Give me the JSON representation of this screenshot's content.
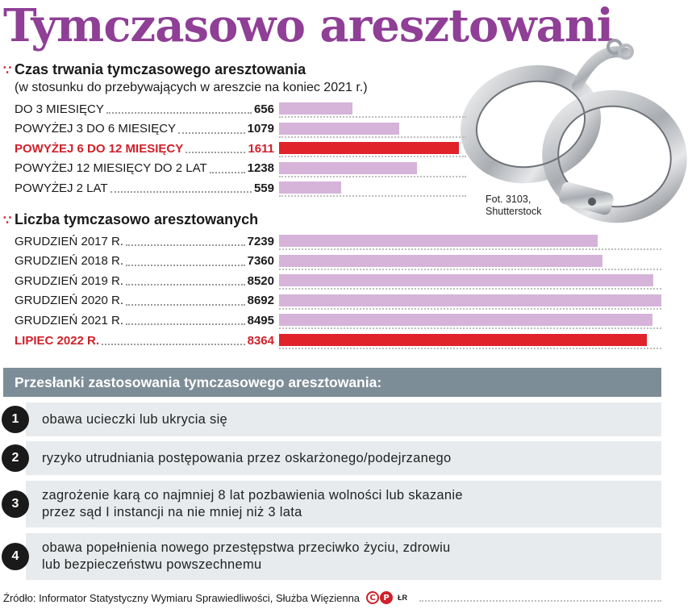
{
  "title": "Tymczasowo aresztowani",
  "photo_credit": [
    "Fot. 3103,",
    "Shutterstock"
  ],
  "chart_data": [
    {
      "type": "bar",
      "orientation": "horizontal",
      "title": "Czas trwania tymczasowego aresztowania",
      "subtitle": "(w stosunku do przebywających w areszcie na koniec 2021 r.)",
      "categories": [
        "DO 3 MIESIĘCY",
        "POWYŻEJ 3 DO 6 MIESIĘCY",
        "POWYŻEJ 6 DO 12 MIESIĘCY",
        "POWYŻEJ 12 MIESIĘCY DO 2 LAT",
        "POWYŻEJ 2 LAT"
      ],
      "values": [
        656,
        1079,
        1611,
        1238,
        559
      ],
      "value_labels": [
        "656",
        "1079",
        "1611",
        "1238",
        "559"
      ],
      "highlight_index": 2,
      "colors": {
        "bar": "#d6b3d9",
        "highlight": "#e0222b"
      }
    },
    {
      "type": "bar",
      "orientation": "horizontal",
      "title": "Liczba tymczasowo aresztowanych",
      "categories": [
        "GRUDZIEŃ 2017 R.",
        "GRUDZIEŃ 2018 R.",
        "GRUDZIEŃ 2019 R.",
        "GRUDZIEŃ 2020 R.",
        "GRUDZIEŃ 2021 R.",
        "LIPIEC 2022 R."
      ],
      "values": [
        7239,
        7360,
        8520,
        8692,
        8495,
        8364
      ],
      "value_labels": [
        "7239",
        "7360",
        "8520",
        "8692",
        "8495",
        "8364"
      ],
      "highlight_index": 5,
      "colors": {
        "bar": "#d6b3d9",
        "highlight": "#e0222b"
      }
    }
  ],
  "premises": {
    "heading": "Przesłanki zastosowania tymczasowego aresztowania:",
    "items": [
      {
        "num": "1",
        "lines": [
          "obawa ucieczki lub ukrycia się"
        ]
      },
      {
        "num": "2",
        "lines": [
          "ryzyko utrudniania postępowania przez oskarżonego/podejrzanego"
        ]
      },
      {
        "num": "3",
        "lines": [
          "zagrożenie karą co najmniej 8 lat pozbawienia wolności lub skazanie",
          "przez sąd I instancji na nie mniej niż 3 lata"
        ]
      },
      {
        "num": "4",
        "lines": [
          "obawa popełnienia nowego przestępstwa przeciwko życiu, zdrowiu",
          "lub bezpieczeństwu powszechnemu"
        ]
      }
    ]
  },
  "source": "Źródło: Informator Statystyczny Wymiaru Sprawiedliwości, Służba Więzienna",
  "logo": [
    "C",
    "P"
  ],
  "initials": "ŁR",
  "colors": {
    "title": "#8f3f96",
    "accent": "#d0202a",
    "panel": "#7d8d97",
    "item_bg": "#e7ebed"
  }
}
